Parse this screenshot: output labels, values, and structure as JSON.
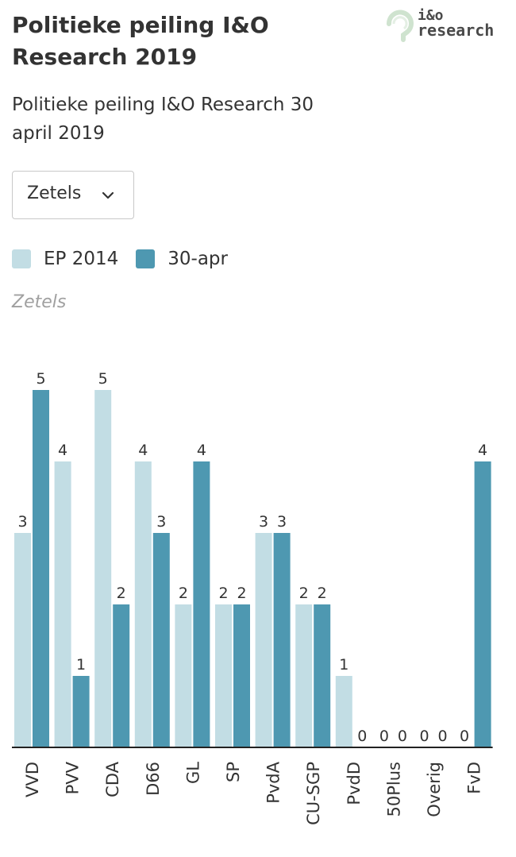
{
  "header": {
    "title": "Politieke peiling I&O Research 2019",
    "subtitle": "Politieke peiling I&O Research 30 april 2019"
  },
  "logo": {
    "line1": "i&o",
    "line2": "research"
  },
  "dropdown": {
    "selected": "Zetels",
    "icon": "chevron-down-icon"
  },
  "legend": [
    {
      "label": "EP 2014",
      "color": "#c2dde4"
    },
    {
      "label": "30-apr",
      "color": "#4e98b1"
    }
  ],
  "chart_data": {
    "type": "bar",
    "ylabel": "Zetels",
    "categories": [
      "VVD",
      "PVV",
      "CDA",
      "D66",
      "GL",
      "SP",
      "PvdA",
      "CU-SGP",
      "PvdD",
      "50Plus",
      "Overig",
      "FvD"
    ],
    "series": [
      {
        "name": "EP 2014",
        "color": "#c2dde4",
        "values": [
          3,
          4,
          5,
          4,
          2,
          2,
          3,
          2,
          1,
          0,
          0,
          0
        ]
      },
      {
        "name": "30-apr",
        "color": "#4e98b1",
        "values": [
          5,
          1,
          2,
          3,
          4,
          2,
          3,
          2,
          0,
          0,
          0,
          4
        ]
      }
    ],
    "ylim": [
      0,
      5
    ],
    "grid": false,
    "legend_position": "top-left"
  }
}
